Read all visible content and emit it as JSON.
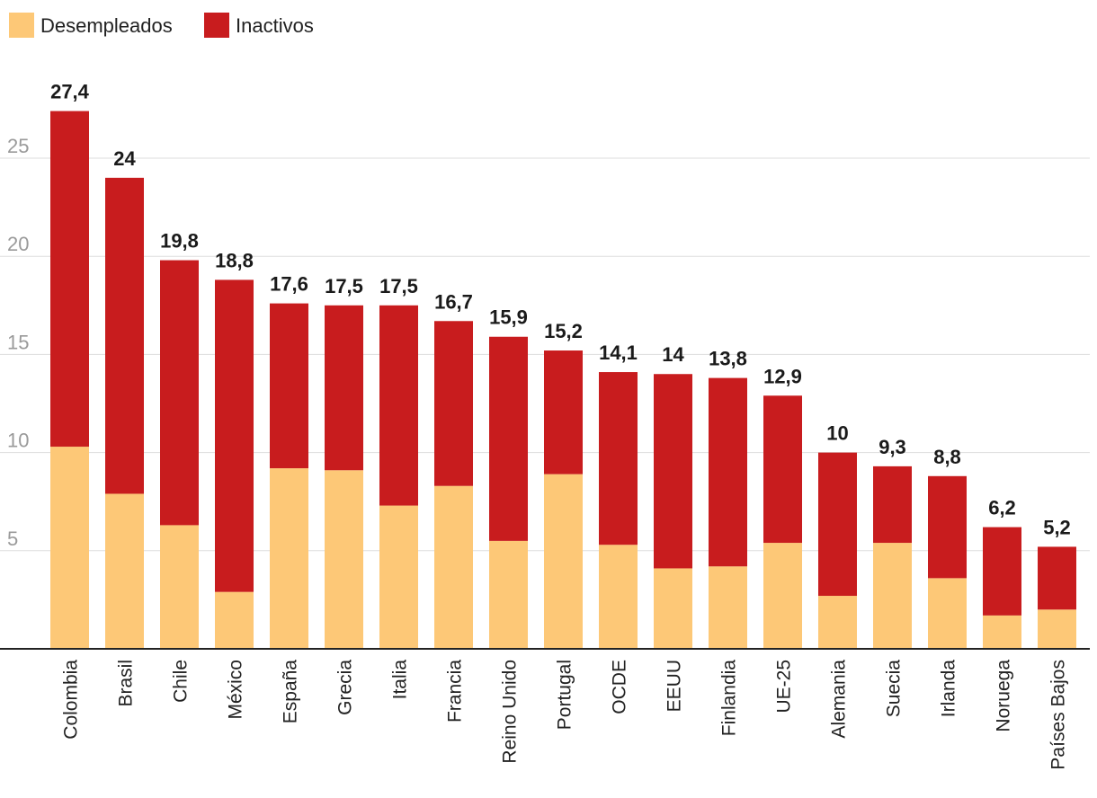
{
  "chart_data": {
    "type": "bar",
    "stacked": true,
    "title": "",
    "xlabel": "",
    "ylabel": "",
    "ylim": [
      0,
      30
    ],
    "yticks": [
      5,
      10,
      15,
      20,
      25
    ],
    "grid": true,
    "legend_position": "top-left",
    "categories": [
      "Colombia",
      "Brasil",
      "Chile",
      "México",
      "España",
      "Grecia",
      "Italia",
      "Francia",
      "Reino Unido",
      "Portugal",
      "OCDE",
      "EEUU",
      "Finlandia",
      "UE-25",
      "Alemania",
      "Suecia",
      "Irlanda",
      "Noruega",
      "Países Bajos"
    ],
    "series": [
      {
        "name": "Desempleados",
        "color": "#fdc877",
        "values": [
          10.3,
          7.9,
          6.3,
          2.9,
          9.2,
          9.1,
          7.3,
          8.3,
          5.5,
          8.9,
          5.3,
          4.1,
          4.2,
          5.4,
          2.7,
          5.4,
          3.6,
          1.7,
          2.0
        ]
      },
      {
        "name": "Inactivos",
        "color": "#c81c1e",
        "values": [
          17.1,
          16.1,
          13.5,
          15.9,
          8.4,
          8.4,
          10.2,
          8.4,
          10.4,
          6.3,
          8.8,
          9.9,
          9.6,
          7.5,
          7.3,
          3.9,
          5.2,
          4.5,
          3.2
        ]
      }
    ],
    "totals": [
      "27,4",
      "24",
      "19,8",
      "18,8",
      "17,6",
      "17,5",
      "17,5",
      "16,7",
      "15,9",
      "15,2",
      "14,1",
      "14",
      "13,8",
      "12,9",
      "10",
      "9,3",
      "8,8",
      "6,2",
      "5,2"
    ]
  }
}
